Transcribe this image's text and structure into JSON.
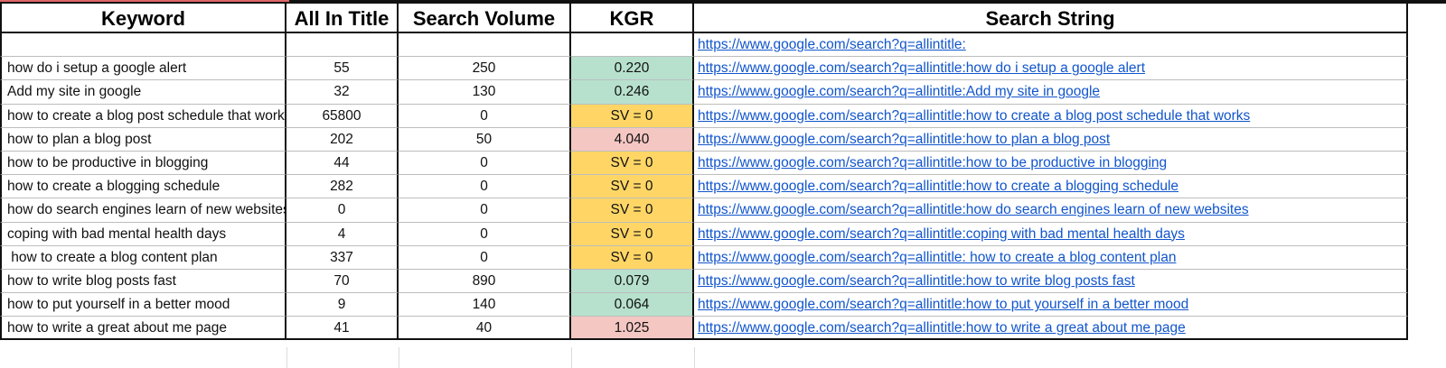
{
  "headers": {
    "keyword": "Keyword",
    "all_in_title": "All In Title",
    "search_volume": "Search Volume",
    "kgr": "KGR",
    "search_string": "Search String"
  },
  "rows": [
    {
      "keyword": "",
      "all_in_title": "",
      "search_volume": "",
      "kgr": "",
      "kgr_status": "none",
      "search_string": "https://www.google.com/search?q=allintitle:"
    },
    {
      "keyword": "how do i setup a google alert",
      "all_in_title": "55",
      "search_volume": "250",
      "kgr": "0.220",
      "kgr_status": "green",
      "search_string": "https://www.google.com/search?q=allintitle:how do i setup a google alert"
    },
    {
      "keyword": "Add my site in google",
      "all_in_title": "32",
      "search_volume": "130",
      "kgr": "0.246",
      "kgr_status": "green",
      "search_string": "https://www.google.com/search?q=allintitle:Add my site in google"
    },
    {
      "keyword": "how to create a blog post schedule that works",
      "all_in_title": "65800",
      "search_volume": "0",
      "kgr": "SV = 0",
      "kgr_status": "yellow",
      "search_string": "https://www.google.com/search?q=allintitle:how to create a blog post schedule that works"
    },
    {
      "keyword": "how to plan a blog post",
      "all_in_title": "202",
      "search_volume": "50",
      "kgr": "4.040",
      "kgr_status": "red",
      "search_string": "https://www.google.com/search?q=allintitle:how to plan a blog post"
    },
    {
      "keyword": "how to be productive in blogging",
      "all_in_title": "44",
      "search_volume": "0",
      "kgr": "SV = 0",
      "kgr_status": "yellow",
      "search_string": "https://www.google.com/search?q=allintitle:how to be productive in blogging"
    },
    {
      "keyword": "how to create a blogging schedule",
      "all_in_title": "282",
      "search_volume": "0",
      "kgr": "SV = 0",
      "kgr_status": "yellow",
      "search_string": "https://www.google.com/search?q=allintitle:how to create a blogging schedule"
    },
    {
      "keyword": "how do search engines learn of new websites",
      "all_in_title": "0",
      "search_volume": "0",
      "kgr": "SV = 0",
      "kgr_status": "yellow",
      "search_string": "https://www.google.com/search?q=allintitle:how do search engines learn of new websites"
    },
    {
      "keyword": "coping with bad mental health days",
      "all_in_title": "4",
      "search_volume": "0",
      "kgr": "SV = 0",
      "kgr_status": "yellow",
      "search_string": "https://www.google.com/search?q=allintitle:coping with bad mental health days"
    },
    {
      "keyword": " how to create a blog content plan",
      "all_in_title": "337",
      "search_volume": "0",
      "kgr": "SV = 0",
      "kgr_status": "yellow",
      "search_string": "https://www.google.com/search?q=allintitle: how to create a blog content plan"
    },
    {
      "keyword": "how to write blog posts fast",
      "all_in_title": "70",
      "search_volume": "890",
      "kgr": "0.079",
      "kgr_status": "green",
      "search_string": "https://www.google.com/search?q=allintitle:how to write blog posts fast"
    },
    {
      "keyword": "how to put yourself in a better mood",
      "all_in_title": "9",
      "search_volume": "140",
      "kgr": "0.064",
      "kgr_status": "green",
      "search_string": "https://www.google.com/search?q=allintitle:how to put yourself in a better mood"
    },
    {
      "keyword": "how to write a great about me page",
      "all_in_title": "41",
      "search_volume": "40",
      "kgr": "1.025",
      "kgr_status": "red",
      "search_string": "https://www.google.com/search?q=allintitle:how to write a great about me page"
    }
  ],
  "colors": {
    "kgr_green": "#b7e1cd",
    "kgr_yellow": "#ffd666",
    "kgr_red": "#f4c7c3",
    "link": "#1155cc"
  }
}
